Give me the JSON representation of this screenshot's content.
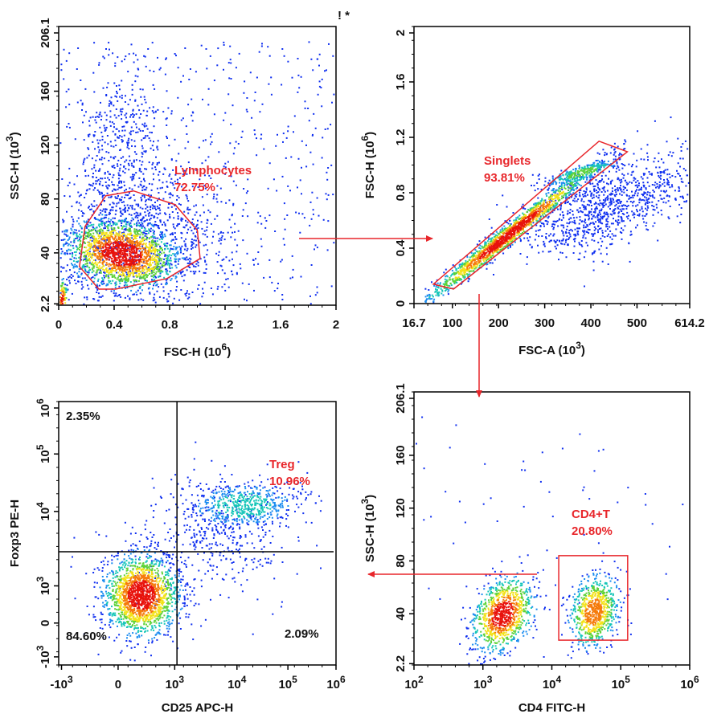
{
  "accent_color": "#e8262b",
  "corner_mark": "! *",
  "chart_data": [
    {
      "type": "scatter",
      "title": "",
      "xlabel": "FSC-H  (10^6)",
      "ylabel": "SSC-H  (10^3)",
      "xlim": [
        0,
        2
      ],
      "ylim": [
        1.2,
        208
      ],
      "xticks": [
        {
          "v": 0,
          "label": "0"
        },
        {
          "v": 0.4,
          "label": "0.4"
        },
        {
          "v": 0.8,
          "label": "0.8"
        },
        {
          "v": 1.2,
          "label": "1.2"
        },
        {
          "v": 1.6,
          "label": "1.6"
        },
        {
          "v": 2,
          "label": "2"
        }
      ],
      "yticks": [
        {
          "v": 2.2,
          "label": "2.2"
        },
        {
          "v": 40,
          "label": "40"
        },
        {
          "v": 80,
          "label": "80"
        },
        {
          "v": 120,
          "label": "120"
        },
        {
          "v": 160,
          "label": "160"
        },
        {
          "v": 206.1,
          "label": "206.1"
        }
      ],
      "gate": {
        "type": "polygon",
        "name": "Lymphocytes",
        "percent": "72.75%",
        "points": [
          [
            0.34,
            82.4
          ],
          [
            0.54,
            86
          ],
          [
            0.84,
            75.8
          ],
          [
            1.0,
            56.7
          ],
          [
            1.02,
            35.8
          ],
          [
            0.78,
            20.9
          ],
          [
            0.41,
            13.1
          ],
          [
            0.29,
            13.1
          ],
          [
            0.15,
            29.9
          ],
          [
            0.19,
            59.7
          ]
        ]
      },
      "populations": [
        {
          "center": [
            0.45,
            40
          ],
          "sd": [
            0.2,
            13
          ],
          "rho": -0.2,
          "n": 1800,
          "intensity": 1.0
        },
        {
          "center": [
            0.6,
            50
          ],
          "sd": [
            0.35,
            25
          ],
          "rho": 0,
          "n": 800,
          "intensity": 0.15
        },
        {
          "center": [
            0.45,
            105
          ],
          "sd": [
            0.15,
            35
          ],
          "rho": 0,
          "n": 500,
          "intensity": 0.1
        },
        {
          "center": [
            0.02,
            6
          ],
          "sd": [
            0.02,
            8
          ],
          "rho": 0,
          "n": 150,
          "intensity": 0.9
        }
      ],
      "background_events": 550,
      "labels": []
    },
    {
      "type": "scatter",
      "title": "",
      "xlabel": "FSC-A  (10^3)",
      "ylabel": "FSC-H  (10^6)",
      "xlim": [
        16.7,
        614.2
      ],
      "ylim": [
        0,
        2
      ],
      "xticks": [
        {
          "v": 16.7,
          "label": "16.7"
        },
        {
          "v": 100,
          "label": "100"
        },
        {
          "v": 200,
          "label": "200"
        },
        {
          "v": 300,
          "label": "300"
        },
        {
          "v": 400,
          "label": "400"
        },
        {
          "v": 500,
          "label": "500"
        },
        {
          "v": 614.2,
          "label": "614.2"
        }
      ],
      "yticks": [
        {
          "v": 0,
          "label": "0"
        },
        {
          "v": 0.4,
          "label": "0.4"
        },
        {
          "v": 0.8,
          "label": "0.8"
        },
        {
          "v": 1.2,
          "label": "1.2"
        },
        {
          "v": 1.6,
          "label": "1.6"
        },
        {
          "v": 2,
          "label": "2"
        }
      ],
      "gate": {
        "type": "polygon",
        "name": "Singlets",
        "percent": "93.81%",
        "points": [
          [
            58.7,
            0.14
          ],
          [
            102.5,
            0.105
          ],
          [
            479,
            1.096
          ],
          [
            417.7,
            1.172
          ]
        ]
      },
      "populations": [
        {
          "center": [
            220,
            0.5
          ],
          "sd": [
            90,
            0.24
          ],
          "rho": 0.985,
          "n": 1600,
          "intensity": 1.0
        },
        {
          "center": [
            380,
            0.95
          ],
          "sd": [
            40,
            0.05
          ],
          "rho": 0.8,
          "n": 300,
          "intensity": 0.55
        },
        {
          "center": [
            440,
            0.72
          ],
          "sd": [
            95,
            0.17
          ],
          "rho": 0.55,
          "n": 1000,
          "intensity": 0.18
        }
      ],
      "background_events": 0,
      "labels": []
    },
    {
      "type": "scatter",
      "title": "",
      "xlabel": "CD25 APC-H",
      "ylabel": "Foxp3 PE-H",
      "axis_scale": "biexponential",
      "xlim": [
        -1.05,
        3.85
      ],
      "ylim": [
        -1.24,
        6.55
      ],
      "xticks": [
        {
          "v": -1,
          "label": "-10^3"
        },
        {
          "v": 0,
          "label": "0"
        },
        {
          "v": 1,
          "label": "10^3"
        },
        {
          "v": 2.1,
          "label": "10^4"
        },
        {
          "v": 3,
          "label": "10^5"
        },
        {
          "v": 3.85,
          "label": "10^6"
        }
      ],
      "yticks": [
        {
          "v": -1,
          "label": "-10^3"
        },
        {
          "v": 0,
          "label": "0"
        },
        {
          "v": 1.1,
          "label": "10^3"
        },
        {
          "v": 3.3,
          "label": "10^4"
        },
        {
          "v": 5,
          "label": "10^5"
        },
        {
          "v": 6.55,
          "label": "10^6"
        }
      ],
      "gate": {
        "type": "quadrant",
        "name": "Treg",
        "percent": "10.96%",
        "split": [
          1.04,
          2.11
        ]
      },
      "populations": [
        {
          "center": [
            0.4,
            0.85
          ],
          "sd": [
            0.33,
            0.6
          ],
          "rho": 0,
          "n": 1700,
          "intensity": 1.0
        },
        {
          "center": [
            2.2,
            3.5
          ],
          "sd": [
            0.5,
            0.35
          ],
          "rho": 0.1,
          "n": 550,
          "intensity": 0.45
        },
        {
          "center": [
            1.6,
            2.5
          ],
          "sd": [
            0.8,
            0.9
          ],
          "rho": 0.2,
          "n": 450,
          "intensity": 0.1
        }
      ],
      "background_events": 0,
      "labels": [
        "2.35%",
        "84.60%",
        "2.09%"
      ]
    },
    {
      "type": "scatter",
      "title": "",
      "xlabel": "CD4 FITC-H",
      "ylabel": "SSC-H  (10^3)",
      "axis_scale": "log",
      "xlim": [
        2,
        6
      ],
      "ylim": [
        1.2,
        208
      ],
      "xticks": [
        {
          "v": 2,
          "label": "10^2"
        },
        {
          "v": 3,
          "label": "10^3"
        },
        {
          "v": 4,
          "label": "10^4"
        },
        {
          "v": 5,
          "label": "10^5"
        },
        {
          "v": 6,
          "label": "10^6"
        }
      ],
      "yticks": [
        {
          "v": 2.2,
          "label": "2.2"
        },
        {
          "v": 40,
          "label": "40"
        },
        {
          "v": 80,
          "label": "80"
        },
        {
          "v": 120,
          "label": "120"
        },
        {
          "v": 160,
          "label": "160"
        },
        {
          "v": 206.1,
          "label": "206.1"
        }
      ],
      "gate": {
        "type": "rect",
        "name": "CD4+T",
        "percent": "20.80%",
        "points": [
          [
            4.1,
            84
          ],
          [
            5.1,
            20
          ]
        ]
      },
      "populations": [
        {
          "center": [
            3.28,
            40
          ],
          "sd": [
            0.22,
            14
          ],
          "rho": 0.3,
          "n": 950,
          "intensity": 1.0
        },
        {
          "center": [
            4.6,
            42
          ],
          "sd": [
            0.18,
            14
          ],
          "rho": 0.2,
          "n": 750,
          "intensity": 0.85
        }
      ],
      "background_events": 60,
      "labels": []
    }
  ]
}
